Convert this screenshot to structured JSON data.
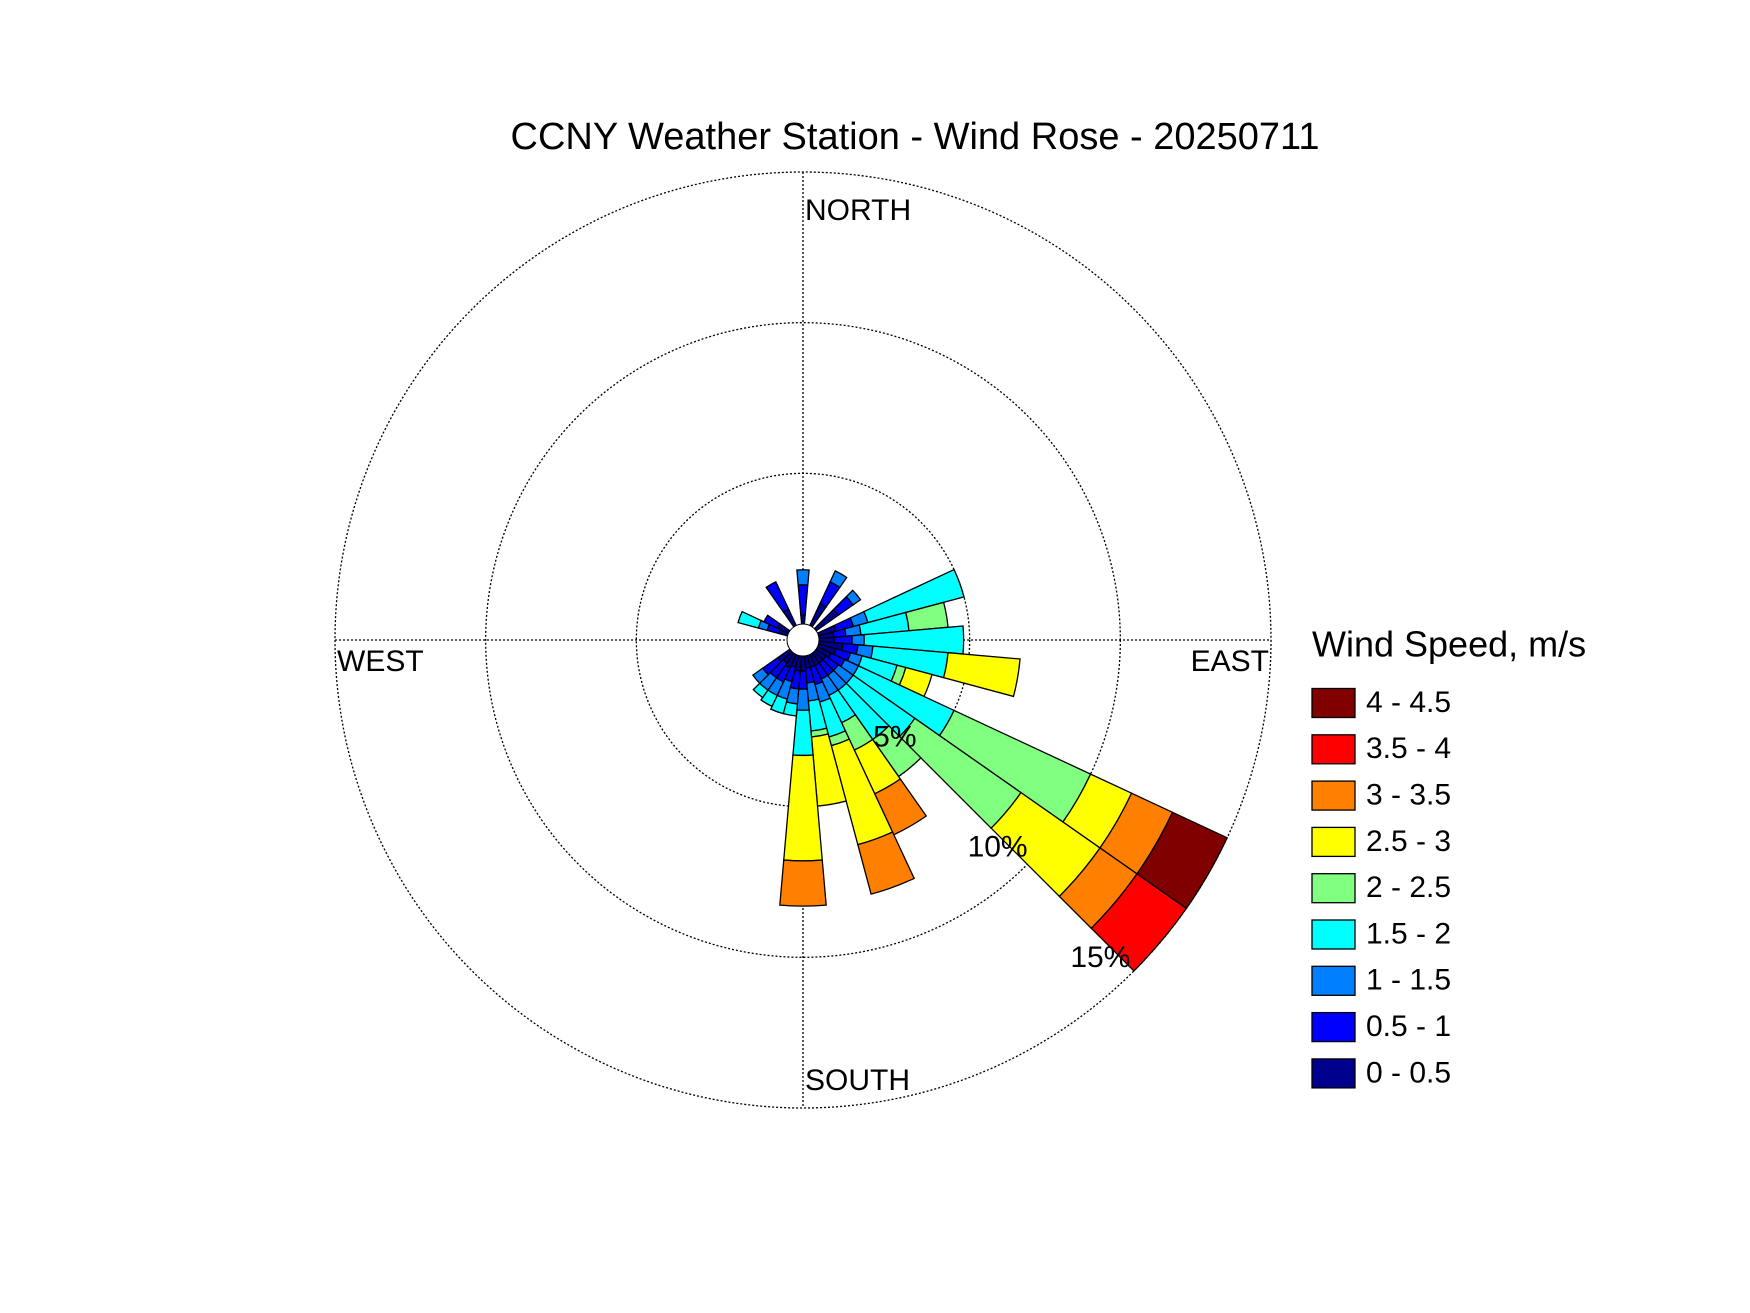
{
  "chart_data": {
    "type": "windrose",
    "title": "CCNY Weather Station - Wind Rose - 20250711",
    "direction_labels": {
      "north": "NORTH",
      "east": "EAST",
      "south": "SOUTH",
      "west": "WEST"
    },
    "legend_title": "Wind Speed, m/s",
    "directions": [
      330,
      0,
      30,
      50,
      70,
      80,
      90,
      100,
      110,
      120,
      130,
      140,
      150,
      160,
      170,
      180,
      190,
      200,
      210,
      220,
      230,
      290,
      300
    ],
    "sector_width": 10,
    "rlim": [
      0,
      15
    ],
    "rticks": [
      {
        "value": 5,
        "label": "5%"
      },
      {
        "value": 10,
        "label": "10%"
      },
      {
        "value": 15,
        "label": "15%"
      }
    ],
    "grid": true,
    "legend": "right",
    "series": [
      {
        "name": "0 - 0.5",
        "color": "#00008f",
        "values": [
          0.6,
          0.3,
          0.8,
          0.9,
          0.6,
          0.5,
          0.5,
          0.8,
          0.6,
          0.5,
          0.4,
          0.4,
          0.4,
          0.4,
          0.4,
          0.5,
          0.5,
          0.4,
          0.5,
          0.4,
          0.5,
          0.3,
          0.4
        ]
      },
      {
        "name": "0.5 - 1",
        "color": "#0000ff",
        "values": [
          1.0,
          1.0,
          0.8,
          0.6,
          0.6,
          0.4,
          0.6,
          0.5,
          0.5,
          0.5,
          0.5,
          0.5,
          0.5,
          0.6,
          0.5,
          0.6,
          0.6,
          0.5,
          0.5,
          0.6,
          0.6,
          0.4,
          0.5
        ]
      },
      {
        "name": "1 - 1.5",
        "color": "#0080ff",
        "values": [
          0,
          0.5,
          0.4,
          0.3,
          0.5,
          0.5,
          0.4,
          0.5,
          0.4,
          0.5,
          0.6,
          0.6,
          0.6,
          0.6,
          0.6,
          0.7,
          0.5,
          0.6,
          0.5,
          0.5,
          0.4,
          0.3,
          0
        ]
      },
      {
        "name": "1.5 - 2",
        "color": "#00ffff",
        "values": [
          0,
          0,
          0,
          0,
          3.3,
          1.6,
          3.3,
          2.5,
          1.2,
          3.5,
          2.5,
          2.0,
          1.0,
          1.2,
          1.0,
          1.5,
          0.4,
          0.5,
          0.4,
          0.3,
          0,
          0.7,
          0
        ]
      },
      {
        "name": "2 - 2.5",
        "color": "#80ff80",
        "values": [
          0,
          0,
          0,
          0,
          0,
          1.3,
          0,
          0,
          0.3,
          5.0,
          4.3,
          1.5,
          1.0,
          0.3,
          0.2,
          0,
          0,
          0,
          0,
          0,
          0,
          0,
          0
        ]
      },
      {
        "name": "2.5 - 3",
        "color": "#ffff00",
        "values": [
          0,
          0,
          0,
          0,
          0,
          0,
          0,
          2.4,
          0.9,
          1.5,
          3.2,
          0,
          1.6,
          3.4,
          2.3,
          3.5,
          0,
          0,
          0,
          0,
          0,
          0,
          0
        ]
      },
      {
        "name": "3 - 3.5",
        "color": "#ff8000",
        "values": [
          0,
          0,
          0,
          0,
          0,
          0,
          0,
          0,
          0,
          1.5,
          1.5,
          0,
          1.5,
          1.7,
          0,
          1.5,
          0,
          0,
          0,
          0,
          0,
          0,
          0
        ]
      },
      {
        "name": "3.5 - 4",
        "color": "#ff0000",
        "values": [
          0,
          0,
          0,
          0,
          0,
          0,
          0,
          0,
          0,
          0,
          2.0,
          0,
          0,
          0,
          0,
          0,
          0,
          0,
          0,
          0,
          0,
          0,
          0
        ]
      },
      {
        "name": "4 - 4.5",
        "color": "#800000",
        "values": [
          0,
          0,
          0,
          0,
          0,
          0,
          0,
          0,
          0,
          2.0,
          0,
          0,
          0,
          0,
          0,
          0,
          0,
          0,
          0,
          0,
          0,
          0,
          0
        ]
      }
    ]
  }
}
